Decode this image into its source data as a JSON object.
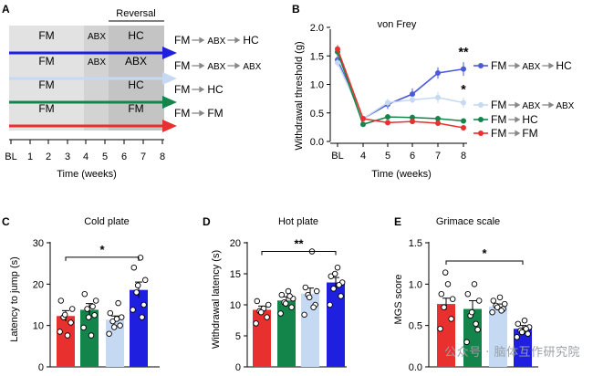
{
  "colors": {
    "blue": "#1f1fe0",
    "lightblue": "#c5d9f3",
    "green": "#14854a",
    "red": "#e8312f",
    "gray_bg": "#e2e2e2",
    "gray_dark": "#c4c4c4"
  },
  "panels": {
    "a": {
      "letter": "A",
      "reversal_label": "Reversal",
      "xlabel": "Time (weeks)",
      "ticks": [
        "BL",
        "1",
        "2",
        "3",
        "4",
        "5",
        "6",
        "7",
        "8"
      ]
    },
    "b": {
      "letter": "B",
      "title": "von Frey",
      "ylabel": "Withdrawal threshold (g)",
      "xlabel": "Time (weeks)"
    },
    "c": {
      "letter": "C",
      "title": "Cold plate",
      "ylabel": "Latency to jump (s)",
      "sig": "*"
    },
    "d": {
      "letter": "D",
      "title": "Hot plate",
      "ylabel": "Withdrawal latency (s)",
      "sig": "**"
    },
    "e": {
      "letter": "E",
      "title": "Grimace scale",
      "ylabel": "MGS score",
      "sig": "*"
    }
  },
  "timeline": {
    "rows": [
      {
        "seg1": "FM",
        "seg2": "ABX",
        "seg3": "HC",
        "label": [
          "FM",
          "ABX",
          "HC"
        ],
        "color": "#1f1fe0"
      },
      {
        "seg1": "FM",
        "seg2": "ABX",
        "seg3": "ABX",
        "label": [
          "FM",
          "ABX",
          "ABX"
        ],
        "color": "#c5d9f3"
      },
      {
        "seg1": "FM",
        "seg2": "",
        "seg3": "HC",
        "label": [
          "FM",
          "HC"
        ],
        "color": "#14854a"
      },
      {
        "seg1": "FM",
        "seg2": "",
        "seg3": "FM",
        "label": [
          "FM",
          "FM"
        ],
        "color": "#e8312f"
      }
    ]
  },
  "chart_data": [
    {
      "type": "line",
      "title": "von Frey",
      "xlabel": "Time (weeks)",
      "ylabel": "Withdrawal threshold (g)",
      "x": [
        "BL",
        "4",
        "5",
        "6",
        "7",
        "8"
      ],
      "ylim": [
        0,
        2.0
      ],
      "yticks": [
        0,
        0.5,
        1.0,
        1.5,
        2.0
      ],
      "series": [
        {
          "name": "FM → ABX → HC",
          "color": "#4a5ad8",
          "values": [
            1.43,
            0.4,
            0.65,
            0.83,
            1.2,
            1.27
          ],
          "sig": "**"
        },
        {
          "name": "FM → ABX → ABX",
          "color": "#c5d9f3",
          "values": [
            1.38,
            0.4,
            0.68,
            0.73,
            0.77,
            0.68
          ],
          "sig": "*"
        },
        {
          "name": "FM → HC",
          "color": "#14854a",
          "values": [
            1.57,
            0.3,
            0.43,
            0.42,
            0.4,
            0.36
          ],
          "sig": ""
        },
        {
          "name": "FM → FM",
          "color": "#e8312f",
          "values": [
            1.62,
            0.4,
            0.33,
            0.35,
            0.32,
            0.24
          ],
          "sig": ""
        }
      ]
    },
    {
      "type": "bar",
      "title": "Cold plate",
      "ylabel": "Latency to jump (s)",
      "ylim": [
        0,
        30
      ],
      "yticks": [
        0,
        10,
        20,
        30
      ],
      "categories": [
        "FM → FM",
        "FM → HC",
        "FM → ABX → ABX",
        "FM → ABX → HC"
      ],
      "values": [
        12.3,
        13.8,
        11.4,
        18.6
      ],
      "errors": [
        1.3,
        1.5,
        0.9,
        1.9
      ],
      "colors": [
        "#e8312f",
        "#14854a",
        "#c5d9f3",
        "#1f1fe0"
      ],
      "points": [
        [
          8.5,
          10.7,
          12.0,
          14.0,
          16.0,
          7.6,
          12.6
        ],
        [
          9.5,
          12.5,
          14.0,
          16.0,
          17.6,
          7.6,
          12.0,
          14.6
        ],
        [
          8.0,
          10.0,
          11.0,
          12.0,
          13.0,
          11.6,
          9.6,
          15.4
        ],
        [
          13.8,
          15.0,
          18.0,
          21.0,
          24.0,
          26.4,
          19.7,
          12.0
        ]
      ]
    },
    {
      "type": "bar",
      "title": "Hot plate",
      "ylabel": "Withdrawal latency (s)",
      "ylim": [
        0,
        20
      ],
      "yticks": [
        0,
        5,
        10,
        15,
        20
      ],
      "categories": [
        "FM → FM",
        "FM → HC",
        "FM → ABX → ABX",
        "FM → ABX → HC"
      ],
      "values": [
        9.2,
        10.7,
        11.8,
        13.6
      ],
      "errors": [
        0.6,
        0.6,
        0.9,
        0.8
      ],
      "colors": [
        "#e8312f",
        "#14854a",
        "#c5d9f3",
        "#1f1fe0"
      ],
      "points": [
        [
          7.0,
          8.0,
          9.0,
          10.0,
          10.6,
          9.4,
          8.8
        ],
        [
          8.6,
          9.6,
          10.4,
          11.0,
          11.6,
          12.2,
          10.2,
          11.4
        ],
        [
          8.4,
          10.0,
          11.6,
          12.2,
          12.8,
          18.6,
          11.2,
          9.6
        ],
        [
          10.0,
          11.4,
          12.6,
          13.6,
          14.6,
          16.0,
          15.0,
          13.2
        ]
      ]
    },
    {
      "type": "bar",
      "title": "Grimace scale",
      "ylabel": "MGS score",
      "ylim": [
        0,
        1.5
      ],
      "yticks": [
        0.0,
        0.5,
        1.0,
        1.5
      ],
      "categories": [
        "FM → FM",
        "FM → HC",
        "FM → ABX → ABX",
        "FM → ABX → HC"
      ],
      "values": [
        0.76,
        0.7,
        0.73,
        0.46
      ],
      "errors": [
        0.07,
        0.1,
        0.03,
        0.04
      ],
      "colors": [
        "#e8312f",
        "#14854a",
        "#c5d9f3",
        "#1f1fe0"
      ],
      "points": [
        [
          0.46,
          0.58,
          0.72,
          0.82,
          0.88,
          1.0,
          1.14
        ],
        [
          0.3,
          0.45,
          0.62,
          0.8,
          0.88,
          1.0,
          0.66,
          0.52
        ],
        [
          0.66,
          0.7,
          0.74,
          0.76,
          0.8,
          0.84,
          0.72,
          0.68
        ],
        [
          0.36,
          0.4,
          0.44,
          0.48,
          0.52,
          0.56,
          0.42,
          0.46
        ]
      ]
    }
  ],
  "watermark": "公众号 · 脑体互作研究院"
}
